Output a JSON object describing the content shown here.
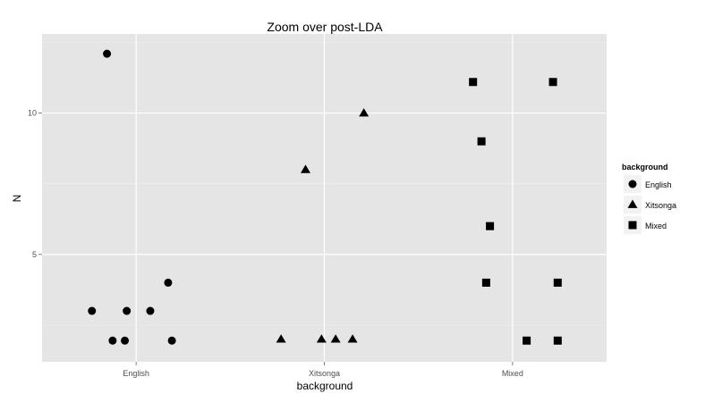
{
  "chart_data": {
    "type": "scatter",
    "title": "Zoom over post-LDA",
    "xlabel": "background",
    "ylabel": "N",
    "categories": [
      "English",
      "Xitsonga",
      "Mixed"
    ],
    "y_ticks": [
      5,
      10
    ],
    "ylim": [
      1.2,
      12.8
    ],
    "grid": true,
    "legend": {
      "title": "background",
      "position": "right",
      "entries": [
        {
          "label": "English",
          "shape": "circle"
        },
        {
          "label": "Xitsonga",
          "shape": "triangle"
        },
        {
          "label": "Mixed",
          "shape": "square"
        }
      ]
    },
    "series": [
      {
        "name": "English",
        "shape": "circle",
        "points": [
          {
            "x": -0.31,
            "y": 12.1
          },
          {
            "x": 0.34,
            "y": 4.0
          },
          {
            "x": -0.47,
            "y": 3.0
          },
          {
            "x": -0.1,
            "y": 3.0
          },
          {
            "x": 0.15,
            "y": 3.0
          },
          {
            "x": -0.25,
            "y": 1.95
          },
          {
            "x": -0.12,
            "y": 1.95
          },
          {
            "x": 0.38,
            "y": 1.95
          }
        ]
      },
      {
        "name": "Xitsonga",
        "shape": "triangle",
        "points": [
          {
            "x": -0.2,
            "y": 8.0
          },
          {
            "x": 0.42,
            "y": 10.0
          },
          {
            "x": -0.46,
            "y": 2.0
          },
          {
            "x": -0.03,
            "y": 2.0
          },
          {
            "x": 0.12,
            "y": 2.0
          },
          {
            "x": 0.3,
            "y": 2.0
          }
        ]
      },
      {
        "name": "Mixed",
        "shape": "square",
        "points": [
          {
            "x": -0.42,
            "y": 11.1
          },
          {
            "x": 0.43,
            "y": 11.1
          },
          {
            "x": -0.33,
            "y": 9.0
          },
          {
            "x": -0.24,
            "y": 6.0
          },
          {
            "x": -0.28,
            "y": 4.0
          },
          {
            "x": 0.48,
            "y": 4.0
          },
          {
            "x": 0.15,
            "y": 1.95
          },
          {
            "x": 0.48,
            "y": 1.95
          }
        ]
      }
    ]
  }
}
